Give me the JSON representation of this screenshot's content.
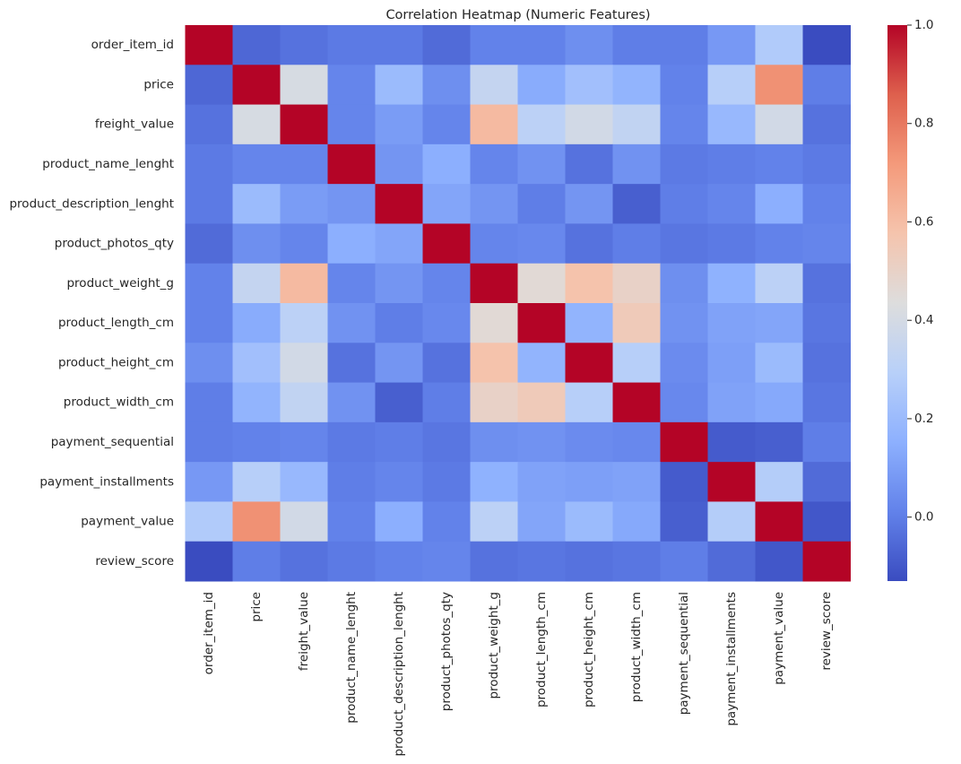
{
  "chart_data": {
    "type": "heatmap",
    "title": "Correlation Heatmap (Numeric Features)",
    "categories": [
      "order_item_id",
      "price",
      "freight_value",
      "product_name_lenght",
      "product_description_lenght",
      "product_photos_qty",
      "product_weight_g",
      "product_length_cm",
      "product_height_cm",
      "product_width_cm",
      "payment_sequential",
      "payment_installments",
      "payment_value",
      "review_score"
    ],
    "values": [
      [
        1,
        -0.06,
        -0.03,
        -0.01,
        -0.01,
        -0.05,
        0.01,
        0.01,
        0.05,
        0.0,
        0.0,
        0.08,
        0.27,
        -0.13
      ],
      [
        -0.06,
        1,
        0.41,
        0.02,
        0.2,
        0.05,
        0.34,
        0.14,
        0.22,
        0.17,
        0.01,
        0.29,
        0.74,
        0.0
      ],
      [
        -0.03,
        0.41,
        1,
        0.02,
        0.09,
        0.02,
        0.61,
        0.31,
        0.39,
        0.33,
        0.02,
        0.19,
        0.39,
        -0.03
      ],
      [
        -0.01,
        0.02,
        0.02,
        1,
        0.07,
        0.15,
        0.02,
        0.06,
        -0.03,
        0.06,
        -0.01,
        0.0,
        0.01,
        -0.01
      ],
      [
        -0.01,
        0.2,
        0.09,
        0.07,
        1,
        0.12,
        0.07,
        0.0,
        0.07,
        -0.08,
        0.0,
        0.02,
        0.15,
        0.01
      ],
      [
        -0.05,
        0.05,
        0.02,
        0.15,
        0.12,
        1,
        0.02,
        0.03,
        -0.03,
        0.0,
        -0.02,
        -0.01,
        0.01,
        0.02
      ],
      [
        0.01,
        0.34,
        0.61,
        0.02,
        0.07,
        0.02,
        1,
        0.46,
        0.58,
        0.5,
        0.05,
        0.16,
        0.31,
        -0.03
      ],
      [
        0.01,
        0.14,
        0.31,
        0.06,
        0.0,
        0.03,
        0.46,
        1,
        0.17,
        0.54,
        0.06,
        0.11,
        0.12,
        -0.02
      ],
      [
        0.05,
        0.22,
        0.39,
        -0.03,
        0.07,
        -0.03,
        0.58,
        0.17,
        1,
        0.29,
        0.04,
        0.1,
        0.2,
        -0.03
      ],
      [
        0.0,
        0.17,
        0.33,
        0.06,
        -0.08,
        0.0,
        0.5,
        0.54,
        0.29,
        1,
        0.03,
        0.11,
        0.13,
        -0.02
      ],
      [
        0.0,
        0.01,
        0.02,
        -0.01,
        0.0,
        -0.02,
        0.05,
        0.06,
        0.04,
        0.03,
        1,
        -0.09,
        -0.08,
        0.0
      ],
      [
        0.08,
        0.29,
        0.19,
        0.0,
        0.02,
        -0.01,
        0.16,
        0.11,
        0.1,
        0.11,
        -0.09,
        1,
        0.28,
        -0.05
      ],
      [
        0.27,
        0.74,
        0.39,
        0.01,
        0.15,
        0.01,
        0.31,
        0.12,
        0.2,
        0.13,
        -0.08,
        0.28,
        1,
        -0.1
      ],
      [
        -0.13,
        0.0,
        -0.03,
        -0.01,
        0.01,
        0.02,
        -0.03,
        -0.02,
        -0.03,
        -0.02,
        0.0,
        -0.05,
        -0.1,
        1
      ]
    ],
    "colormap": "coolwarm",
    "zlim": [
      -0.13,
      1.0
    ],
    "zticks": [
      {
        "value": 0.0,
        "label": "0.0"
      },
      {
        "value": 0.2,
        "label": "0.2"
      },
      {
        "value": 0.4,
        "label": "0.4"
      },
      {
        "value": 0.6,
        "label": "0.6"
      },
      {
        "value": 0.8,
        "label": "0.8"
      },
      {
        "value": 1.0,
        "label": "1.0"
      }
    ]
  }
}
